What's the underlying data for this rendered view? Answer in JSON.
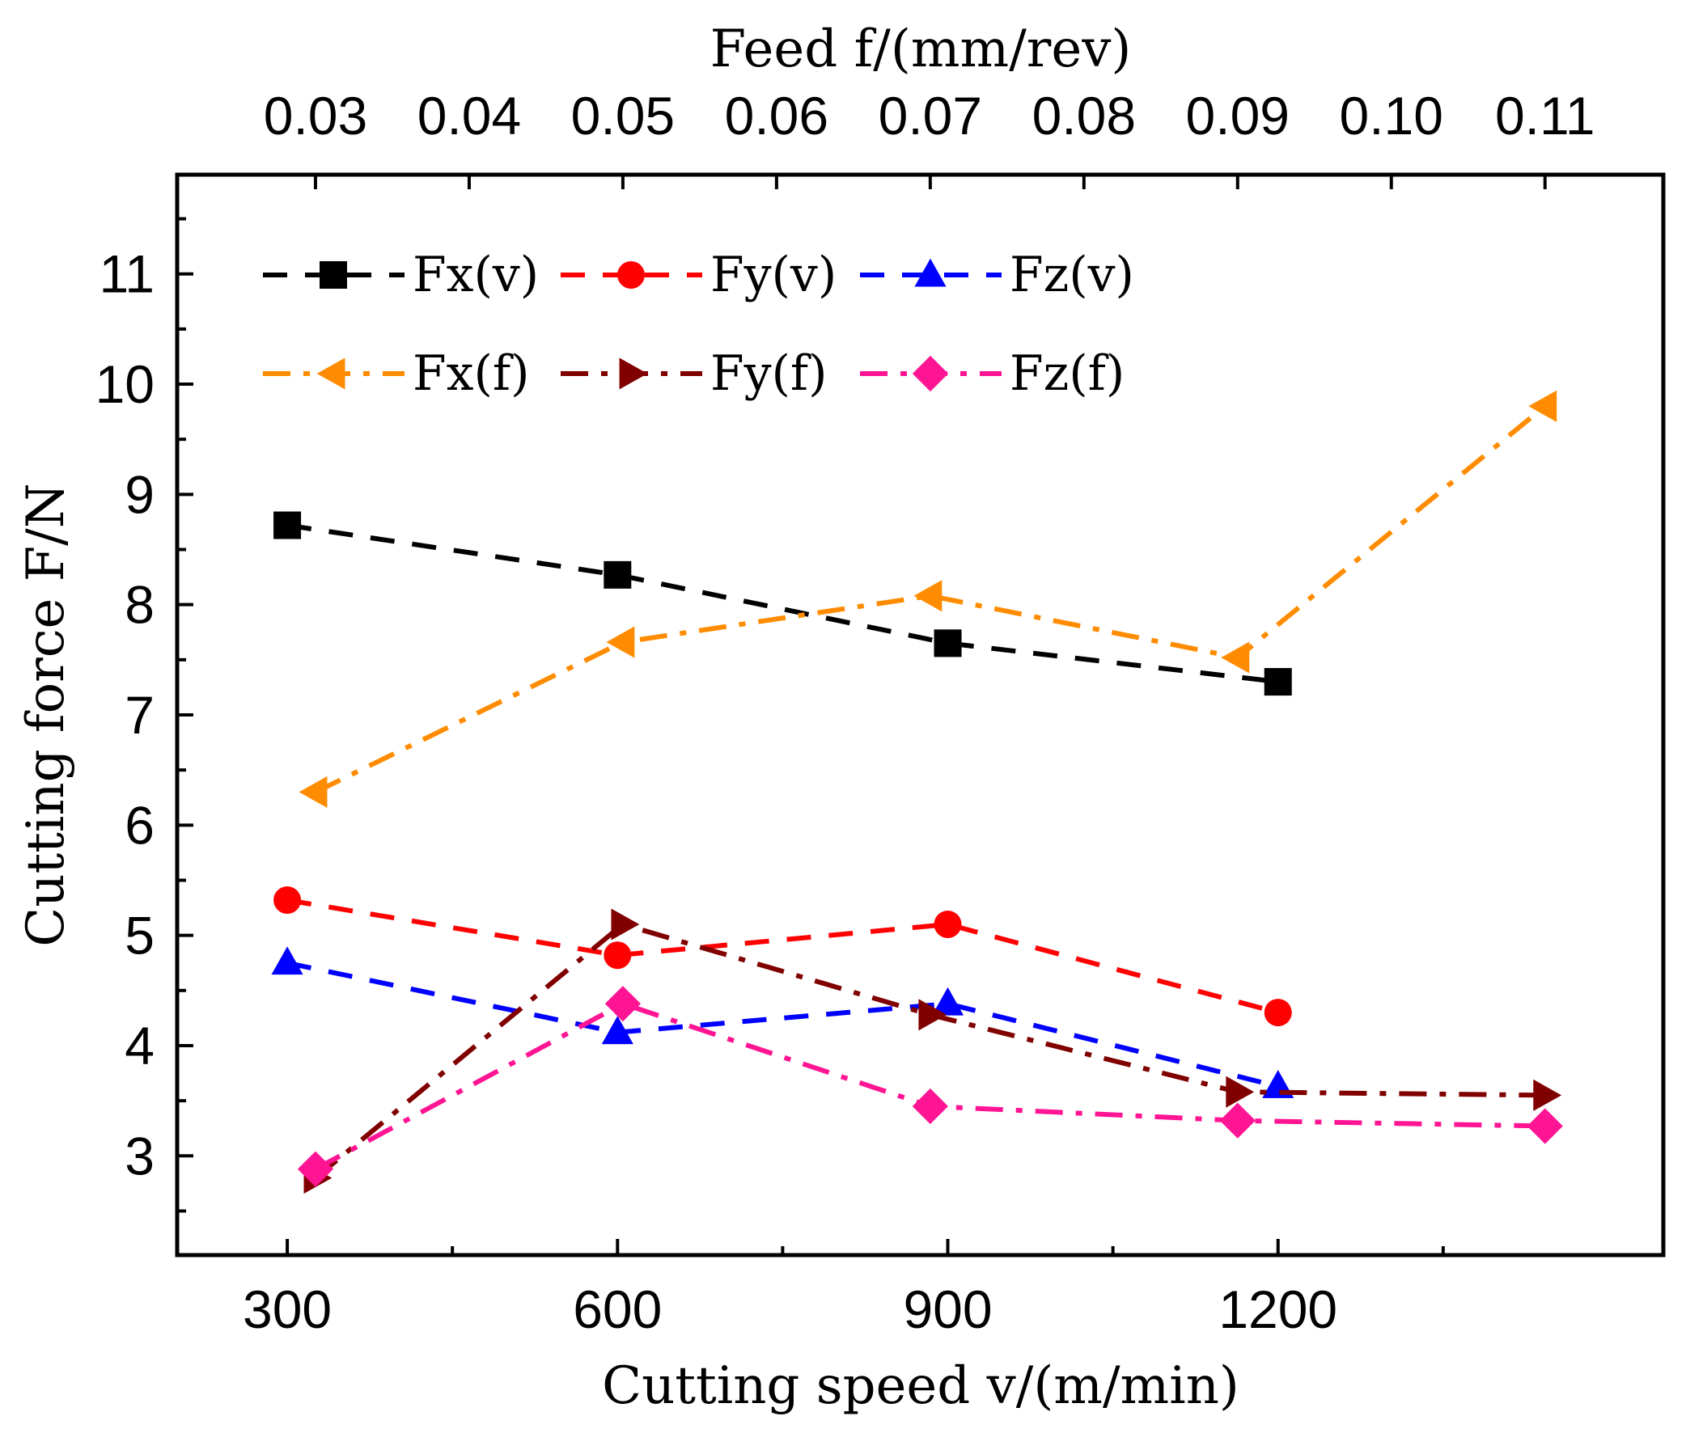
{
  "chart_data": {
    "type": "line",
    "title": "",
    "xlabel": "Cutting speed v/(m/min)",
    "x2label": "Feed f/(mm/rev)",
    "ylabel": "Cutting force F/N",
    "xlim": [
      200,
      1550
    ],
    "x2lim": [
      0.021,
      0.1177
    ],
    "ylim": [
      2.1,
      11.9
    ],
    "x_ticks": [
      "300",
      "600",
      "900",
      "1200"
    ],
    "x2_ticks": [
      "0.03",
      "0.04",
      "0.05",
      "0.06",
      "0.07",
      "0.08",
      "0.09",
      "0.10",
      "0.11"
    ],
    "y_ticks": [
      "3",
      "4",
      "5",
      "6",
      "7",
      "8",
      "9",
      "10",
      "11"
    ],
    "legend_position": "top-left",
    "series": [
      {
        "name": "Fx(v)",
        "axis": "bottom",
        "x": [
          300,
          600,
          900,
          1200
        ],
        "values": [
          8.72,
          8.27,
          7.65,
          7.3
        ],
        "color": "#000000",
        "marker": "square",
        "dash": "dash"
      },
      {
        "name": "Fy(v)",
        "axis": "bottom",
        "x": [
          300,
          600,
          900,
          1200
        ],
        "values": [
          5.32,
          4.82,
          5.1,
          4.3
        ],
        "color": "#ff0000",
        "marker": "circle",
        "dash": "dash"
      },
      {
        "name": "Fz(v)",
        "axis": "bottom",
        "x": [
          300,
          600,
          900,
          1200
        ],
        "values": [
          4.75,
          4.12,
          4.38,
          3.63
        ],
        "color": "#0000ff",
        "marker": "triangle-up",
        "dash": "dash"
      },
      {
        "name": "Fx(f)",
        "axis": "top",
        "x": [
          0.03,
          0.05,
          0.07,
          0.09,
          0.11
        ],
        "values": [
          6.3,
          7.66,
          8.08,
          7.52,
          9.8
        ],
        "color": "#ff8c00",
        "marker": "triangle-left",
        "dash": "dashdot"
      },
      {
        "name": "Fy(f)",
        "axis": "top",
        "x": [
          0.03,
          0.05,
          0.07,
          0.09,
          0.11
        ],
        "values": [
          2.8,
          5.1,
          4.28,
          3.58,
          3.55
        ],
        "color": "#800000",
        "marker": "triangle-right",
        "dash": "dashdot"
      },
      {
        "name": "Fz(f)",
        "axis": "top",
        "x": [
          0.03,
          0.05,
          0.07,
          0.09,
          0.11
        ],
        "values": [
          2.88,
          4.38,
          3.45,
          3.32,
          3.27
        ],
        "color": "#ff1493",
        "marker": "diamond",
        "dash": "dashdot"
      }
    ]
  }
}
